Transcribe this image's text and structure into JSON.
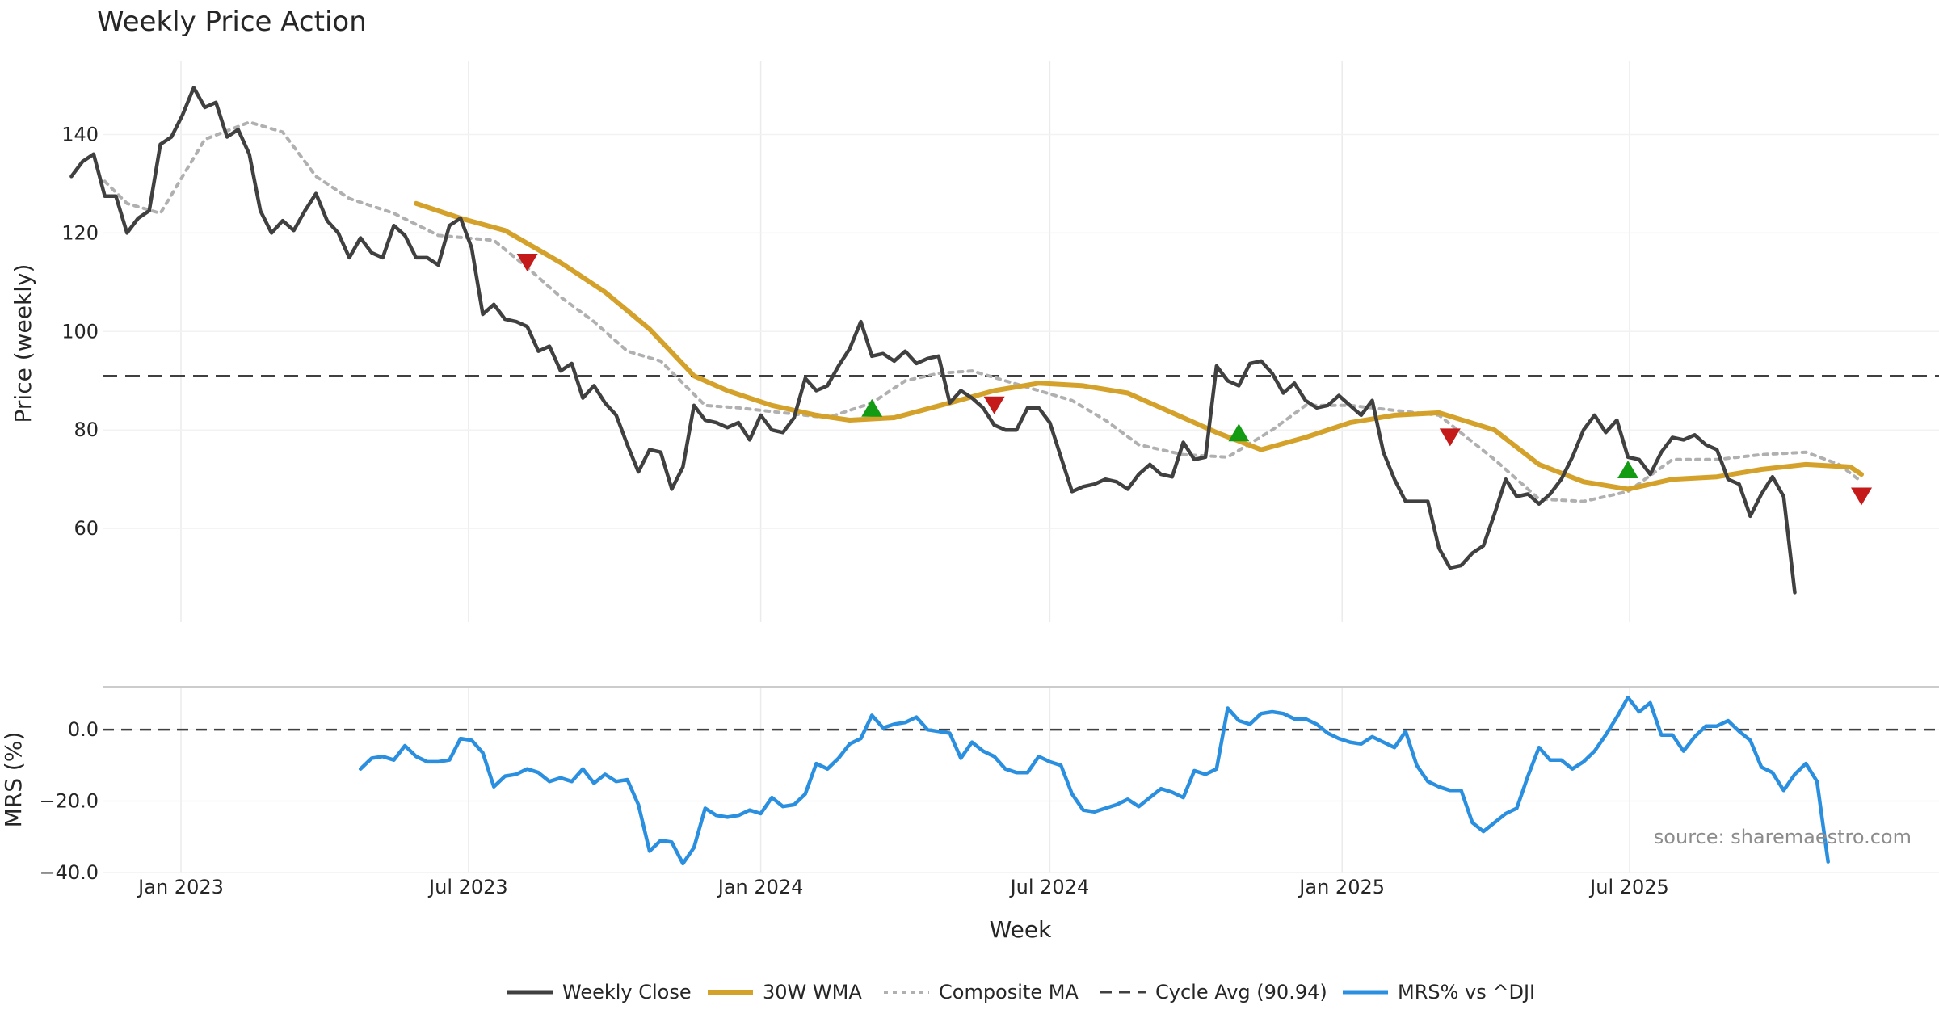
{
  "chart_data": {
    "type": "line",
    "title": "Weekly Price Action",
    "xlabel": "Week",
    "x_ticks": [
      "Jan 2023",
      "Jul 2023",
      "Jan 2024",
      "Jul 2024",
      "Jan 2025",
      "Jul 2025"
    ],
    "source_note": "source: sharemaestro.com",
    "price_panel": {
      "ylabel": "Price (weekly)",
      "ylim": [
        41,
        155
      ],
      "yticks": [
        "60",
        "80",
        "100",
        "120",
        "140"
      ],
      "ytick_values": [
        60,
        80,
        100,
        120,
        140
      ],
      "cycle_avg": 90.94,
      "weekly_close": {
        "name": "Weekly Close",
        "color": "#404040",
        "start": "2022-10-24",
        "values": [
          131.5,
          134.5,
          136,
          127.5,
          127.5,
          120,
          123,
          124.5,
          138,
          139.5,
          144,
          149.5,
          145.5,
          146.5,
          139.5,
          141,
          136,
          124.5,
          120,
          122.5,
          120.5,
          124.5,
          128,
          122.5,
          120,
          115,
          119,
          116,
          115,
          121.5,
          119.5,
          115,
          115,
          113.5,
          121.5,
          123,
          117,
          103.5,
          105.5,
          102.5,
          102,
          101,
          96,
          97,
          92,
          93.5,
          86.5,
          89,
          85.5,
          83,
          77,
          71.5,
          76,
          75.5,
          68,
          72.5,
          85,
          82,
          81.5,
          80.5,
          81.5,
          78,
          83,
          80,
          79.5,
          82.5,
          90.5,
          88,
          89,
          93,
          96.5,
          102,
          95,
          95.5,
          94,
          96,
          93.5,
          94.5,
          95,
          85.5,
          88,
          86.5,
          84.5,
          81,
          80,
          80,
          84.5,
          84.5,
          81.5,
          74.5,
          67.5,
          68.5,
          69,
          70,
          69.5,
          68,
          71,
          73,
          71,
          70.5,
          77.5,
          74,
          74.5,
          93,
          90,
          89,
          93.5,
          94,
          91.5,
          87.5,
          89.5,
          86,
          84.5,
          85,
          87,
          85,
          83,
          86,
          75.5,
          70,
          65.5,
          65.5,
          65.5,
          56,
          52,
          52.5,
          55,
          56.5,
          63,
          70,
          66.5,
          67,
          65,
          67,
          70,
          74.5,
          80,
          83,
          79.5,
          82,
          74.5,
          74,
          71,
          75.5,
          78.5,
          78,
          79,
          77,
          76,
          70,
          69,
          62.5,
          67,
          70.5,
          66.5,
          47
        ]
      },
      "wma_30w": {
        "name": "30W WMA",
        "color": "#d4a22b",
        "x": [
          "2023-05-29",
          "2023-06-26",
          "2023-07-24",
          "2023-08-28",
          "2023-09-25",
          "2023-10-23",
          "2023-11-20",
          "2023-12-11",
          "2024-01-08",
          "2024-02-05",
          "2024-02-26",
          "2024-03-25",
          "2024-04-29",
          "2024-05-27",
          "2024-06-24",
          "2024-07-22",
          "2024-08-19",
          "2024-09-16",
          "2024-10-14",
          "2024-11-11",
          "2024-12-09",
          "2025-01-06",
          "2025-02-03",
          "2025-03-03",
          "2025-04-07",
          "2025-05-05",
          "2025-06-02",
          "2025-06-30",
          "2025-07-28",
          "2025-08-25",
          "2025-09-22",
          "2025-10-20",
          "2025-11-17",
          "2025-11-24"
        ],
        "values": [
          126,
          123,
          120.5,
          114,
          108,
          100.5,
          91,
          88,
          85,
          83,
          82,
          82.5,
          85.5,
          88,
          89.5,
          89,
          87.5,
          83.5,
          79.5,
          76,
          78.5,
          81.5,
          83,
          83.5,
          80,
          73,
          69.5,
          68,
          70,
          70.5,
          72,
          73,
          72.5,
          71
        ]
      },
      "composite_ma": {
        "name": "Composite MA",
        "color": "#b0b0b0",
        "x": [
          "2022-11-14",
          "2022-11-28",
          "2022-12-19",
          "2023-01-16",
          "2023-02-13",
          "2023-03-06",
          "2023-03-27",
          "2023-04-17",
          "2023-05-15",
          "2023-06-12",
          "2023-07-17",
          "2023-08-07",
          "2023-08-28",
          "2023-09-18",
          "2023-10-09",
          "2023-10-30",
          "2023-11-27",
          "2023-12-18",
          "2024-01-15",
          "2024-02-12",
          "2024-03-11",
          "2024-04-01",
          "2024-04-22",
          "2024-05-13",
          "2024-06-03",
          "2024-06-24",
          "2024-07-15",
          "2024-08-05",
          "2024-08-26",
          "2024-09-23",
          "2024-10-21",
          "2024-11-18",
          "2024-12-09",
          "2025-01-06",
          "2025-02-03",
          "2025-03-03",
          "2025-04-07",
          "2025-05-05",
          "2025-06-02",
          "2025-06-30",
          "2025-07-28",
          "2025-08-25",
          "2025-09-22",
          "2025-10-20",
          "2025-11-10",
          "2025-11-24"
        ],
        "values": [
          130.5,
          126,
          124,
          139,
          142.5,
          140.5,
          131.5,
          127,
          124,
          119.5,
          118.5,
          113,
          107,
          102,
          96,
          94,
          85,
          84.5,
          83.5,
          82.5,
          85.5,
          90,
          91.5,
          92,
          90,
          88,
          86,
          82,
          77,
          75,
          74.5,
          80,
          85,
          85,
          84,
          83,
          74,
          66,
          65.5,
          67.5,
          74,
          74,
          75,
          75.5,
          73,
          69.5
        ]
      },
      "signals": {
        "up": {
          "color": "#149b14",
          "x": [
            "2024-03-11",
            "2024-10-28",
            "2025-06-30"
          ],
          "values": [
            84.5,
            79.5,
            72
          ]
        },
        "down": {
          "color": "#c41a1a",
          "x": [
            "2023-08-07",
            "2024-05-27",
            "2025-03-10",
            "2025-11-24"
          ],
          "values": [
            114,
            85,
            78.5,
            66.5
          ]
        }
      }
    },
    "mrs_panel": {
      "ylabel": "MRS (%)",
      "ylim": [
        -40,
        12
      ],
      "yticks": [
        "0.0",
        "−20.0",
        "−40.0"
      ],
      "ytick_values": [
        0,
        -20,
        -40
      ],
      "mrs": {
        "name": "MRS% vs ^DJI",
        "color": "#2b8fe0",
        "start": "2023-04-24",
        "values": [
          -11,
          -8,
          -7.5,
          -8.5,
          -4.5,
          -7.5,
          -9,
          -9,
          -8.5,
          -2.5,
          -3,
          -6.5,
          -16,
          -13,
          -12.5,
          -11,
          -12,
          -14.5,
          -13.5,
          -14.5,
          -11,
          -15,
          -12.5,
          -14.5,
          -14,
          -21,
          -34,
          -31,
          -31.5,
          -37.5,
          -33,
          -22,
          -24,
          -24.5,
          -24,
          -22.5,
          -23.5,
          -19,
          -21.5,
          -21,
          -18,
          -9.5,
          -11,
          -8,
          -4,
          -2.5,
          4,
          0.5,
          1.5,
          2,
          3.5,
          0,
          -0.5,
          -1,
          -8,
          -3.5,
          -6,
          -7.5,
          -11,
          -12,
          -12,
          -7.5,
          -9,
          -10,
          -18,
          -22.5,
          -23,
          -22,
          -21,
          -19.5,
          -21.5,
          -19,
          -16.5,
          -17.5,
          -19,
          -11.5,
          -12.5,
          -11,
          6,
          2.5,
          1.5,
          4.5,
          5,
          4.5,
          3,
          3,
          1.5,
          -1,
          -2.5,
          -3.5,
          -4,
          -2,
          -3.5,
          -5,
          -0.5,
          -10,
          -14.5,
          -16,
          -17,
          -17,
          -26,
          -28.5,
          -26,
          -23.5,
          -22,
          -13,
          -5,
          -8.5,
          -8.5,
          -11,
          -9,
          -6,
          -1.5,
          3.5,
          9,
          5,
          7.5,
          -1.5,
          -1.5,
          -6,
          -2,
          1,
          1,
          2.5,
          -0.5,
          -3,
          -10.5,
          -12,
          -17,
          -12.5,
          -9.5,
          -14.5,
          -37
        ]
      }
    },
    "legend": {
      "placement": "bottom-center",
      "items": [
        "Weekly Close",
        "30W WMA",
        "Composite MA",
        "Cycle Avg (90.94)",
        "MRS% vs ^DJI"
      ]
    }
  }
}
